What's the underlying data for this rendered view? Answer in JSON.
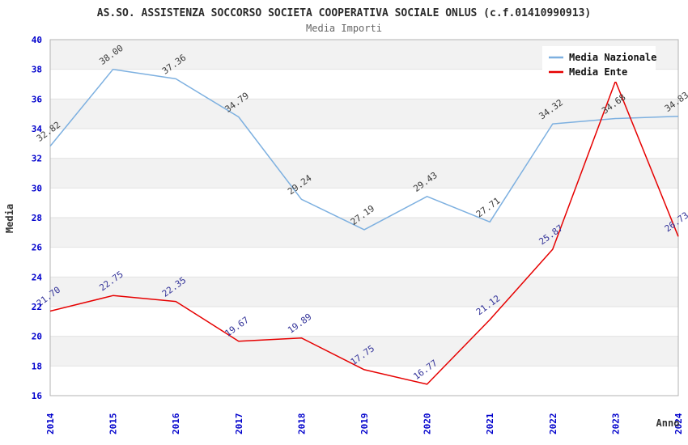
{
  "chart_data": {
    "type": "line",
    "title": "AS.SO. ASSISTENZA SOCCORSO SOCIETA COOPERATIVA SOCIALE ONLUS (c.f.01410990913)",
    "subtitle": "Media Importi",
    "xlabel": "Anno",
    "ylabel": "Media",
    "categories": [
      "2014",
      "2015",
      "2016",
      "2017",
      "2018",
      "2019",
      "2020",
      "2021",
      "2022",
      "2023",
      "2024"
    ],
    "ylim": [
      16,
      40
    ],
    "ytick_step": 2,
    "yticks": [
      16,
      18,
      20,
      22,
      24,
      26,
      28,
      30,
      32,
      34,
      36,
      38,
      40
    ],
    "grid": "horizontal-bands-alternating",
    "legend_position": "top-right",
    "series": [
      {
        "name": "Media Nazionale",
        "color": "#7db0e0",
        "label_color": "#3a3a3a",
        "values": [
          32.82,
          38.0,
          37.36,
          34.79,
          29.24,
          27.19,
          29.43,
          27.71,
          34.32,
          34.68,
          34.83
        ],
        "labels": [
          "32.82",
          "38.00",
          "37.36",
          "34.79",
          "29.24",
          "27.19",
          "29.43",
          "27.71",
          "34.32",
          "34.68",
          "34.83"
        ]
      },
      {
        "name": "Media Ente",
        "color": "#e60000",
        "label_color": "#333399",
        "values": [
          21.7,
          22.75,
          22.35,
          19.67,
          19.89,
          17.75,
          16.77,
          21.12,
          25.87,
          37.2,
          26.73
        ],
        "labels": [
          "21.70",
          "22.75",
          "22.35",
          "19.67",
          "19.89",
          "17.75",
          "16.77",
          "21.12",
          "25.87",
          null,
          "26.73"
        ]
      }
    ],
    "colors": {
      "background": "#ffffff",
      "band_gray": "#f2f2f2",
      "gridline": "#e2e2e2",
      "plot_border": "#b3b3b3",
      "tick_label": "#0000cc",
      "legend_background": "#ffffff"
    }
  }
}
